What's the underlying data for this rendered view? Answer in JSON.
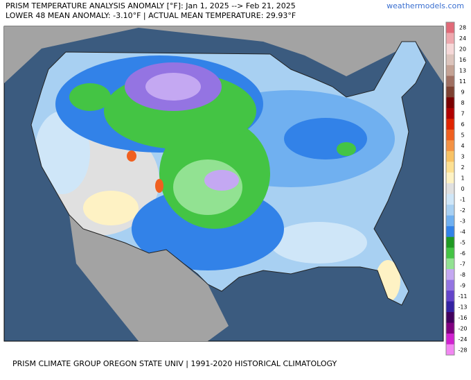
{
  "header": {
    "title": "PRISM TEMPERATURE ANALYSIS ANOMALY [°F]: Jan 1, 2025 --> Feb 21, 2025",
    "subtitle": "LOWER 48 MEAN ANOMALY: -3.10°F | ACTUAL MEAN TEMPERATURE: 29.93°F",
    "watermark": "weathermodels.com"
  },
  "footer": "PRISM CLIMATE GROUP OREGON STATE UNIV | 1991-2020 HISTORICAL CLIMATOLOGY",
  "colorbar": {
    "ticks": [
      28,
      24,
      20,
      16,
      13,
      11,
      9,
      8,
      7,
      6,
      5,
      4,
      3,
      2,
      1,
      0,
      -1,
      -2,
      -3,
      -4,
      -5,
      -6,
      -7,
      -8,
      -9,
      -11,
      -13,
      -16,
      -20,
      -24,
      -28
    ],
    "colors": [
      "#e26a78",
      "#eea8ae",
      "#f6d8d8",
      "#dcc4bc",
      "#c4a294",
      "#a07062",
      "#7e4232",
      "#7a0000",
      "#b00000",
      "#e02400",
      "#f06020",
      "#f49244",
      "#f8c264",
      "#fde092",
      "#fef2c4",
      "#e0e0e0",
      "#cfe6f8",
      "#a8d0f2",
      "#70b0f0",
      "#3282e8",
      "#1f9a22",
      "#44c444",
      "#92e292",
      "#c4a8f2",
      "#9474e2",
      "#6444ca",
      "#3422a2",
      "#42005e",
      "#800080",
      "#d022d0",
      "#f286f2"
    ]
  }
}
